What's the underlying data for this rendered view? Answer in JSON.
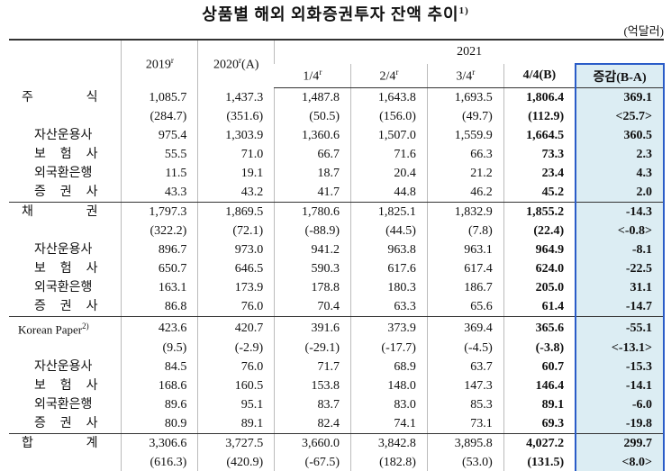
{
  "title": {
    "text": "상품별 해외 외화증권투자 잔액 추이",
    "note": "1)"
  },
  "unit": "(억달러)",
  "header": {
    "y2019": {
      "text": "2019",
      "sup": "r"
    },
    "y2020": {
      "text": "2020",
      "sup": "r",
      "suffix": "(A)"
    },
    "y2021": "2021",
    "quarters": [
      {
        "text": "1/4",
        "sup": "r"
      },
      {
        "text": "2/4",
        "sup": "r"
      },
      {
        "text": "3/4",
        "sup": "r"
      },
      {
        "text": "4/4(B)"
      }
    ],
    "change": "증감(B-A)"
  },
  "table": {
    "sections": [
      {
        "rows": [
          {
            "label": "주 식",
            "values": [
              "1,085.7",
              "1,437.3",
              "1,487.8",
              "1,643.8",
              "1,693.5",
              "1,806.4",
              "369.1"
            ]
          },
          {
            "values": [
              "(284.7)",
              "(351.6)",
              "(50.5)",
              "(156.0)",
              "(49.7)",
              "(112.9)",
              "<25.7>"
            ]
          },
          {
            "label": "자산운용사",
            "values": [
              "975.4",
              "1,303.9",
              "1,360.6",
              "1,507.0",
              "1,559.9",
              "1,664.5",
              "360.5"
            ]
          },
          {
            "label": "보 험 사",
            "values": [
              "55.5",
              "71.0",
              "66.7",
              "71.6",
              "66.3",
              "73.3",
              "2.3"
            ]
          },
          {
            "label": "외국환은행",
            "values": [
              "11.5",
              "19.1",
              "18.7",
              "20.4",
              "21.2",
              "23.4",
              "4.3"
            ]
          },
          {
            "label": "증 권 사",
            "values": [
              "43.3",
              "43.2",
              "41.7",
              "44.8",
              "46.2",
              "45.2",
              "2.0"
            ]
          }
        ]
      },
      {
        "rows": [
          {
            "label": "채 권",
            "values": [
              "1,797.3",
              "1,869.5",
              "1,780.6",
              "1,825.1",
              "1,832.9",
              "1,855.2",
              "-14.3"
            ]
          },
          {
            "values": [
              "(322.2)",
              "(72.1)",
              "(-88.9)",
              "(44.5)",
              "(7.8)",
              "(22.4)",
              "<-0.8>"
            ]
          },
          {
            "label": "자산운용사",
            "values": [
              "896.7",
              "973.0",
              "941.2",
              "963.8",
              "963.1",
              "964.9",
              "-8.1"
            ]
          },
          {
            "label": "보 험 사",
            "values": [
              "650.7",
              "646.5",
              "590.3",
              "617.6",
              "617.4",
              "624.0",
              "-22.5"
            ]
          },
          {
            "label": "외국환은행",
            "values": [
              "163.1",
              "173.9",
              "178.8",
              "180.3",
              "186.7",
              "205.0",
              "31.1"
            ]
          },
          {
            "label": "증 권 사",
            "values": [
              "86.8",
              "76.0",
              "70.4",
              "63.3",
              "65.6",
              "61.4",
              "-14.7"
            ]
          }
        ]
      },
      {
        "rows": [
          {
            "label": "Korean Paper",
            "label_sup": "2)",
            "values": [
              "423.6",
              "420.7",
              "391.6",
              "373.9",
              "369.4",
              "365.6",
              "-55.1"
            ]
          },
          {
            "values": [
              "(9.5)",
              "(-2.9)",
              "(-29.1)",
              "(-17.7)",
              "(-4.5)",
              "(-3.8)",
              "<-13.1>"
            ]
          },
          {
            "label": "자산운용사",
            "values": [
              "84.5",
              "76.0",
              "71.7",
              "68.9",
              "63.7",
              "60.7",
              "-15.3"
            ]
          },
          {
            "label": "보 험 사",
            "values": [
              "168.6",
              "160.5",
              "153.8",
              "148.0",
              "147.3",
              "146.4",
              "-14.1"
            ]
          },
          {
            "label": "외국환은행",
            "values": [
              "89.6",
              "95.1",
              "83.7",
              "83.0",
              "85.3",
              "89.1",
              "-6.0"
            ]
          },
          {
            "label": "증 권 사",
            "values": [
              "80.9",
              "89.1",
              "82.4",
              "74.1",
              "73.1",
              "69.3",
              "-19.8"
            ]
          }
        ]
      },
      {
        "rows": [
          {
            "label": "합 계",
            "values": [
              "3,306.6",
              "3,727.5",
              "3,660.0",
              "3,842.8",
              "3,895.8",
              "4,027.2",
              "299.7"
            ]
          },
          {
            "values": [
              "(616.3)",
              "(420.9)",
              "(-67.5)",
              "(182.8)",
              "(53.0)",
              "(131.5)",
              "<8.0>"
            ]
          }
        ]
      }
    ]
  }
}
